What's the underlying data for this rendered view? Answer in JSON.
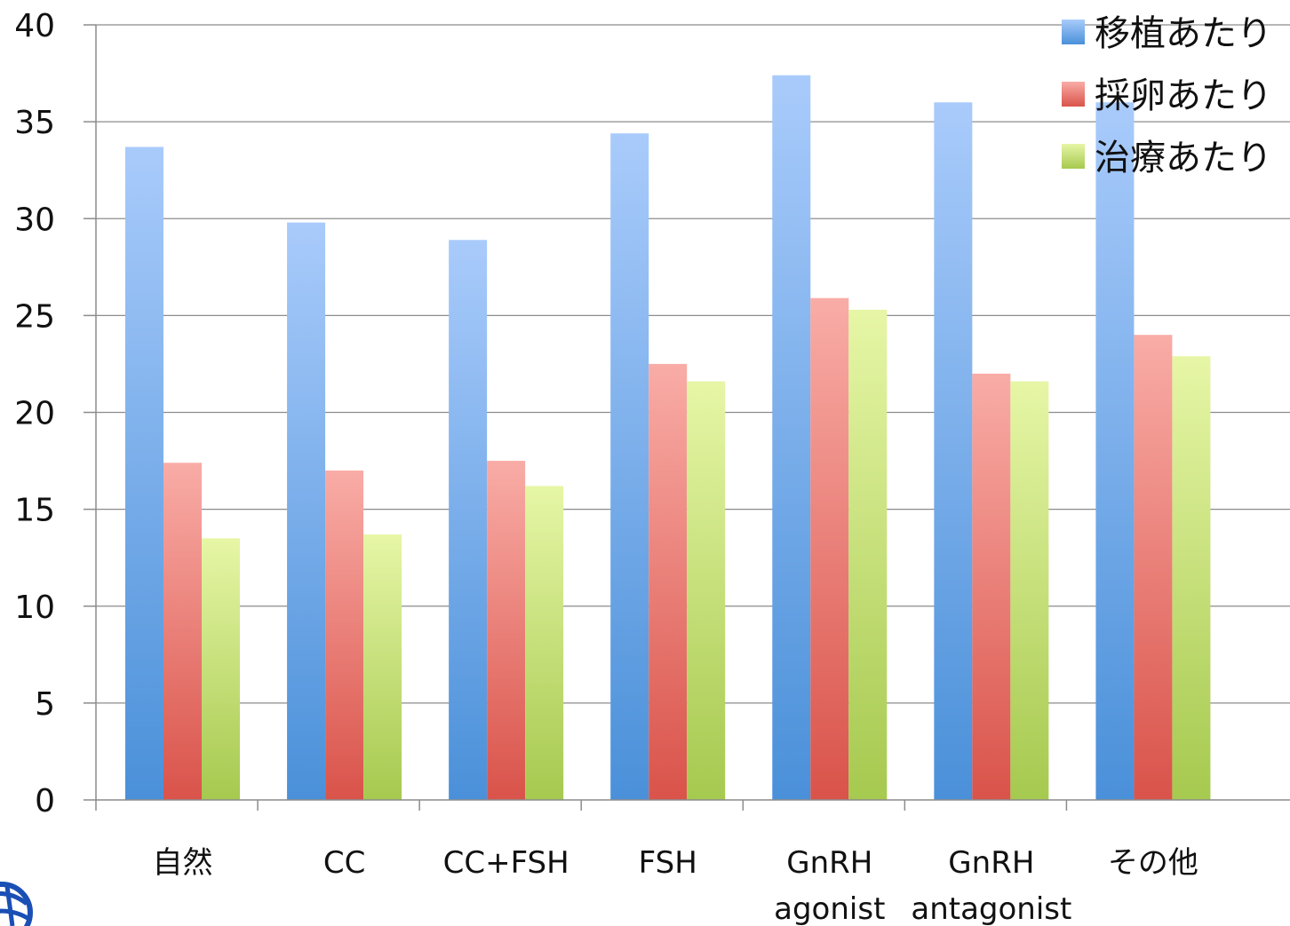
{
  "chart_data": {
    "type": "bar",
    "categories": [
      [
        "自然"
      ],
      [
        "CC"
      ],
      [
        "CC+FSH"
      ],
      [
        "FSH"
      ],
      [
        "GnRH",
        "agonist"
      ],
      [
        "GnRH",
        "antagonist"
      ],
      [
        "その他"
      ]
    ],
    "series": [
      {
        "name": "移植あたり",
        "color": "#4a90d9",
        "color_light": "#a9cbfb",
        "values": [
          33.7,
          29.8,
          28.9,
          34.4,
          37.4,
          36.0,
          36.0
        ]
      },
      {
        "name": "採卵あたり",
        "color": "#d9534a",
        "color_light": "#f9aca6",
        "values": [
          17.4,
          17.0,
          17.5,
          22.5,
          25.9,
          22.0,
          24.0
        ]
      },
      {
        "name": "治療あたり",
        "color": "#a6c94f",
        "color_light": "#e6f6a6",
        "values": [
          13.5,
          13.7,
          16.2,
          21.6,
          25.3,
          21.6,
          22.9
        ]
      }
    ],
    "yticks": [
      "0",
      "5",
      "10",
      "15",
      "20",
      "25",
      "30",
      "35",
      "40"
    ],
    "ylim": [
      0,
      40
    ],
    "grid": true,
    "legend_position": "top-right"
  },
  "logo": {
    "icon": "globe-logo-icon",
    "color": "#1a4fb5"
  }
}
